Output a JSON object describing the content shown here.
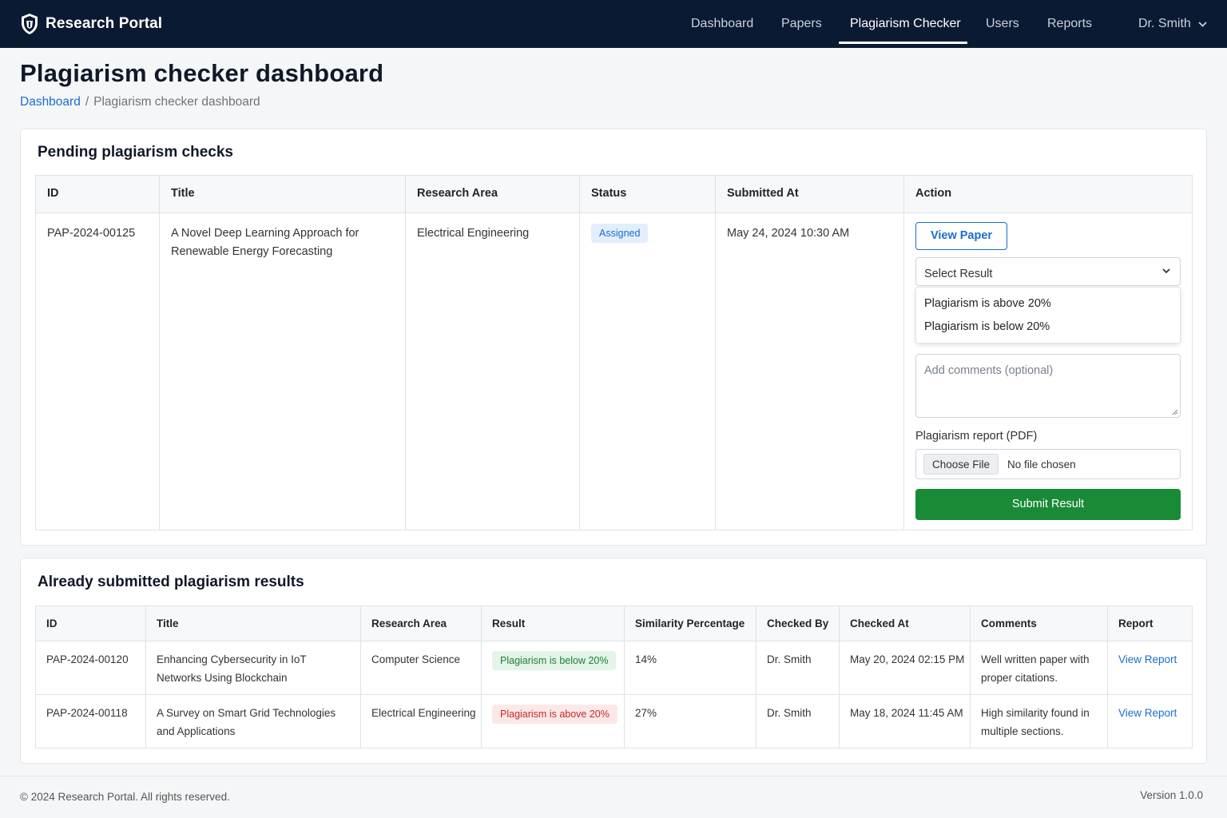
{
  "app": {
    "brand": "Research Portal"
  },
  "nav": {
    "items": [
      {
        "label": "Dashboard",
        "active": false
      },
      {
        "label": "Papers",
        "active": false
      },
      {
        "label": "Plagiarism Checker",
        "active": true
      },
      {
        "label": "Users",
        "active": false
      },
      {
        "label": "Reports",
        "active": false
      }
    ],
    "user": "Dr. Smith"
  },
  "header": {
    "title": "Plagiarism checker dashboard",
    "breadcrumb": {
      "home": "Dashboard",
      "separator": "/",
      "current": "Plagiarism checker dashboard"
    }
  },
  "pending": {
    "title": "Pending plagiarism checks",
    "columns": [
      "ID",
      "Title",
      "Research Area",
      "Status",
      "Submitted At",
      "Action"
    ],
    "row": {
      "id": "PAP-2024-00125",
      "title": "A Novel Deep Learning Approach for Renewable Energy Forecasting",
      "area": "Electrical Engineering",
      "status": "Assigned",
      "submitted_at": "May 24, 2024 10:30 AM"
    },
    "action": {
      "view_label": "View Paper",
      "select_placeholder": "Select Result",
      "options": [
        "Plagiarism is above 20%",
        "Plagiarism is below 20%"
      ],
      "comments_placeholder": "Add comments (optional)",
      "file_label": "Plagiarism report (PDF)",
      "choose_file": "Choose File",
      "no_file": "No file chosen",
      "submit_label": "Submit Result"
    }
  },
  "results": {
    "title": "Already submitted plagiarism results",
    "columns": [
      "ID",
      "Title",
      "Research Area",
      "Result",
      "Similarity Percentage",
      "Checked By",
      "Checked At",
      "Comments",
      "Report"
    ],
    "rows": [
      {
        "id": "PAP-2024-00120",
        "title": "Enhancing Cybersecurity in IoT Networks Using Blockchain",
        "area": "Computer Science",
        "result": "Plagiarism is below 20%",
        "similarity": "14%",
        "checked_by": "Dr. Smith",
        "checked_at": "May 20, 2024 02:15 PM",
        "comments": "Well written paper with proper citations.",
        "report": "View Report"
      },
      {
        "id": "PAP-2024-00118",
        "title": "A Survey on Smart Grid Technologies and Applications",
        "area": "Electrical Engineering",
        "result": "Plagiarism is above 20%",
        "similarity": "27%",
        "checked_by": "Dr. Smith",
        "checked_at": "May 18, 2024 11:45 AM",
        "comments": "High similarity found in multiple sections.",
        "report": "View Report"
      }
    ]
  },
  "footer": {
    "copyright": "© 2024  Research Portal. All rights reserved.",
    "version": "Version 1.0.0"
  },
  "colors": {
    "navbar": "#0b1a33",
    "accent": "#1a6dd1",
    "success": "#198a36",
    "danger": "#c62828"
  },
  "icons": {
    "brand": "shield-crest-icon",
    "user_menu": "chevron-down-icon",
    "select": "chevron-down-icon"
  }
}
